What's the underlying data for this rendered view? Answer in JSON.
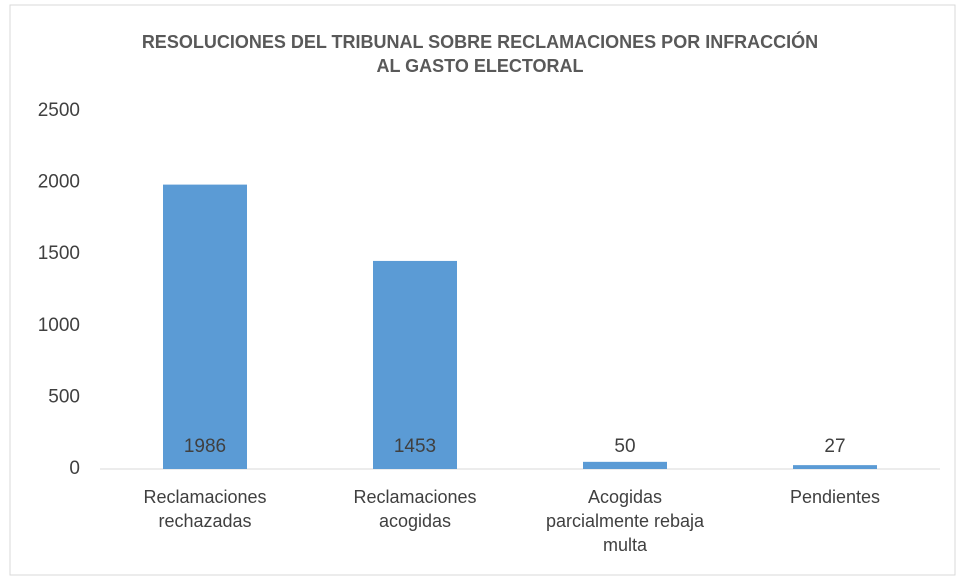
{
  "chart_data": {
    "type": "bar",
    "title": "RESOLUCIONES DEL TRIBUNAL SOBRE RECLAMACIONES POR INFRACCIÓN AL GASTO ELECTORAL",
    "categories": [
      "Reclamaciones rechazadas",
      "Reclamaciones acogidas",
      "Acogidas parcialmente rebaja multa",
      "Pendientes"
    ],
    "values": [
      1986,
      1453,
      50,
      27
    ],
    "color": "#5b9bd5",
    "ylim": [
      0,
      2500
    ],
    "yticks": [
      0,
      500,
      1000,
      1500,
      2000,
      2500
    ],
    "grid": false
  }
}
